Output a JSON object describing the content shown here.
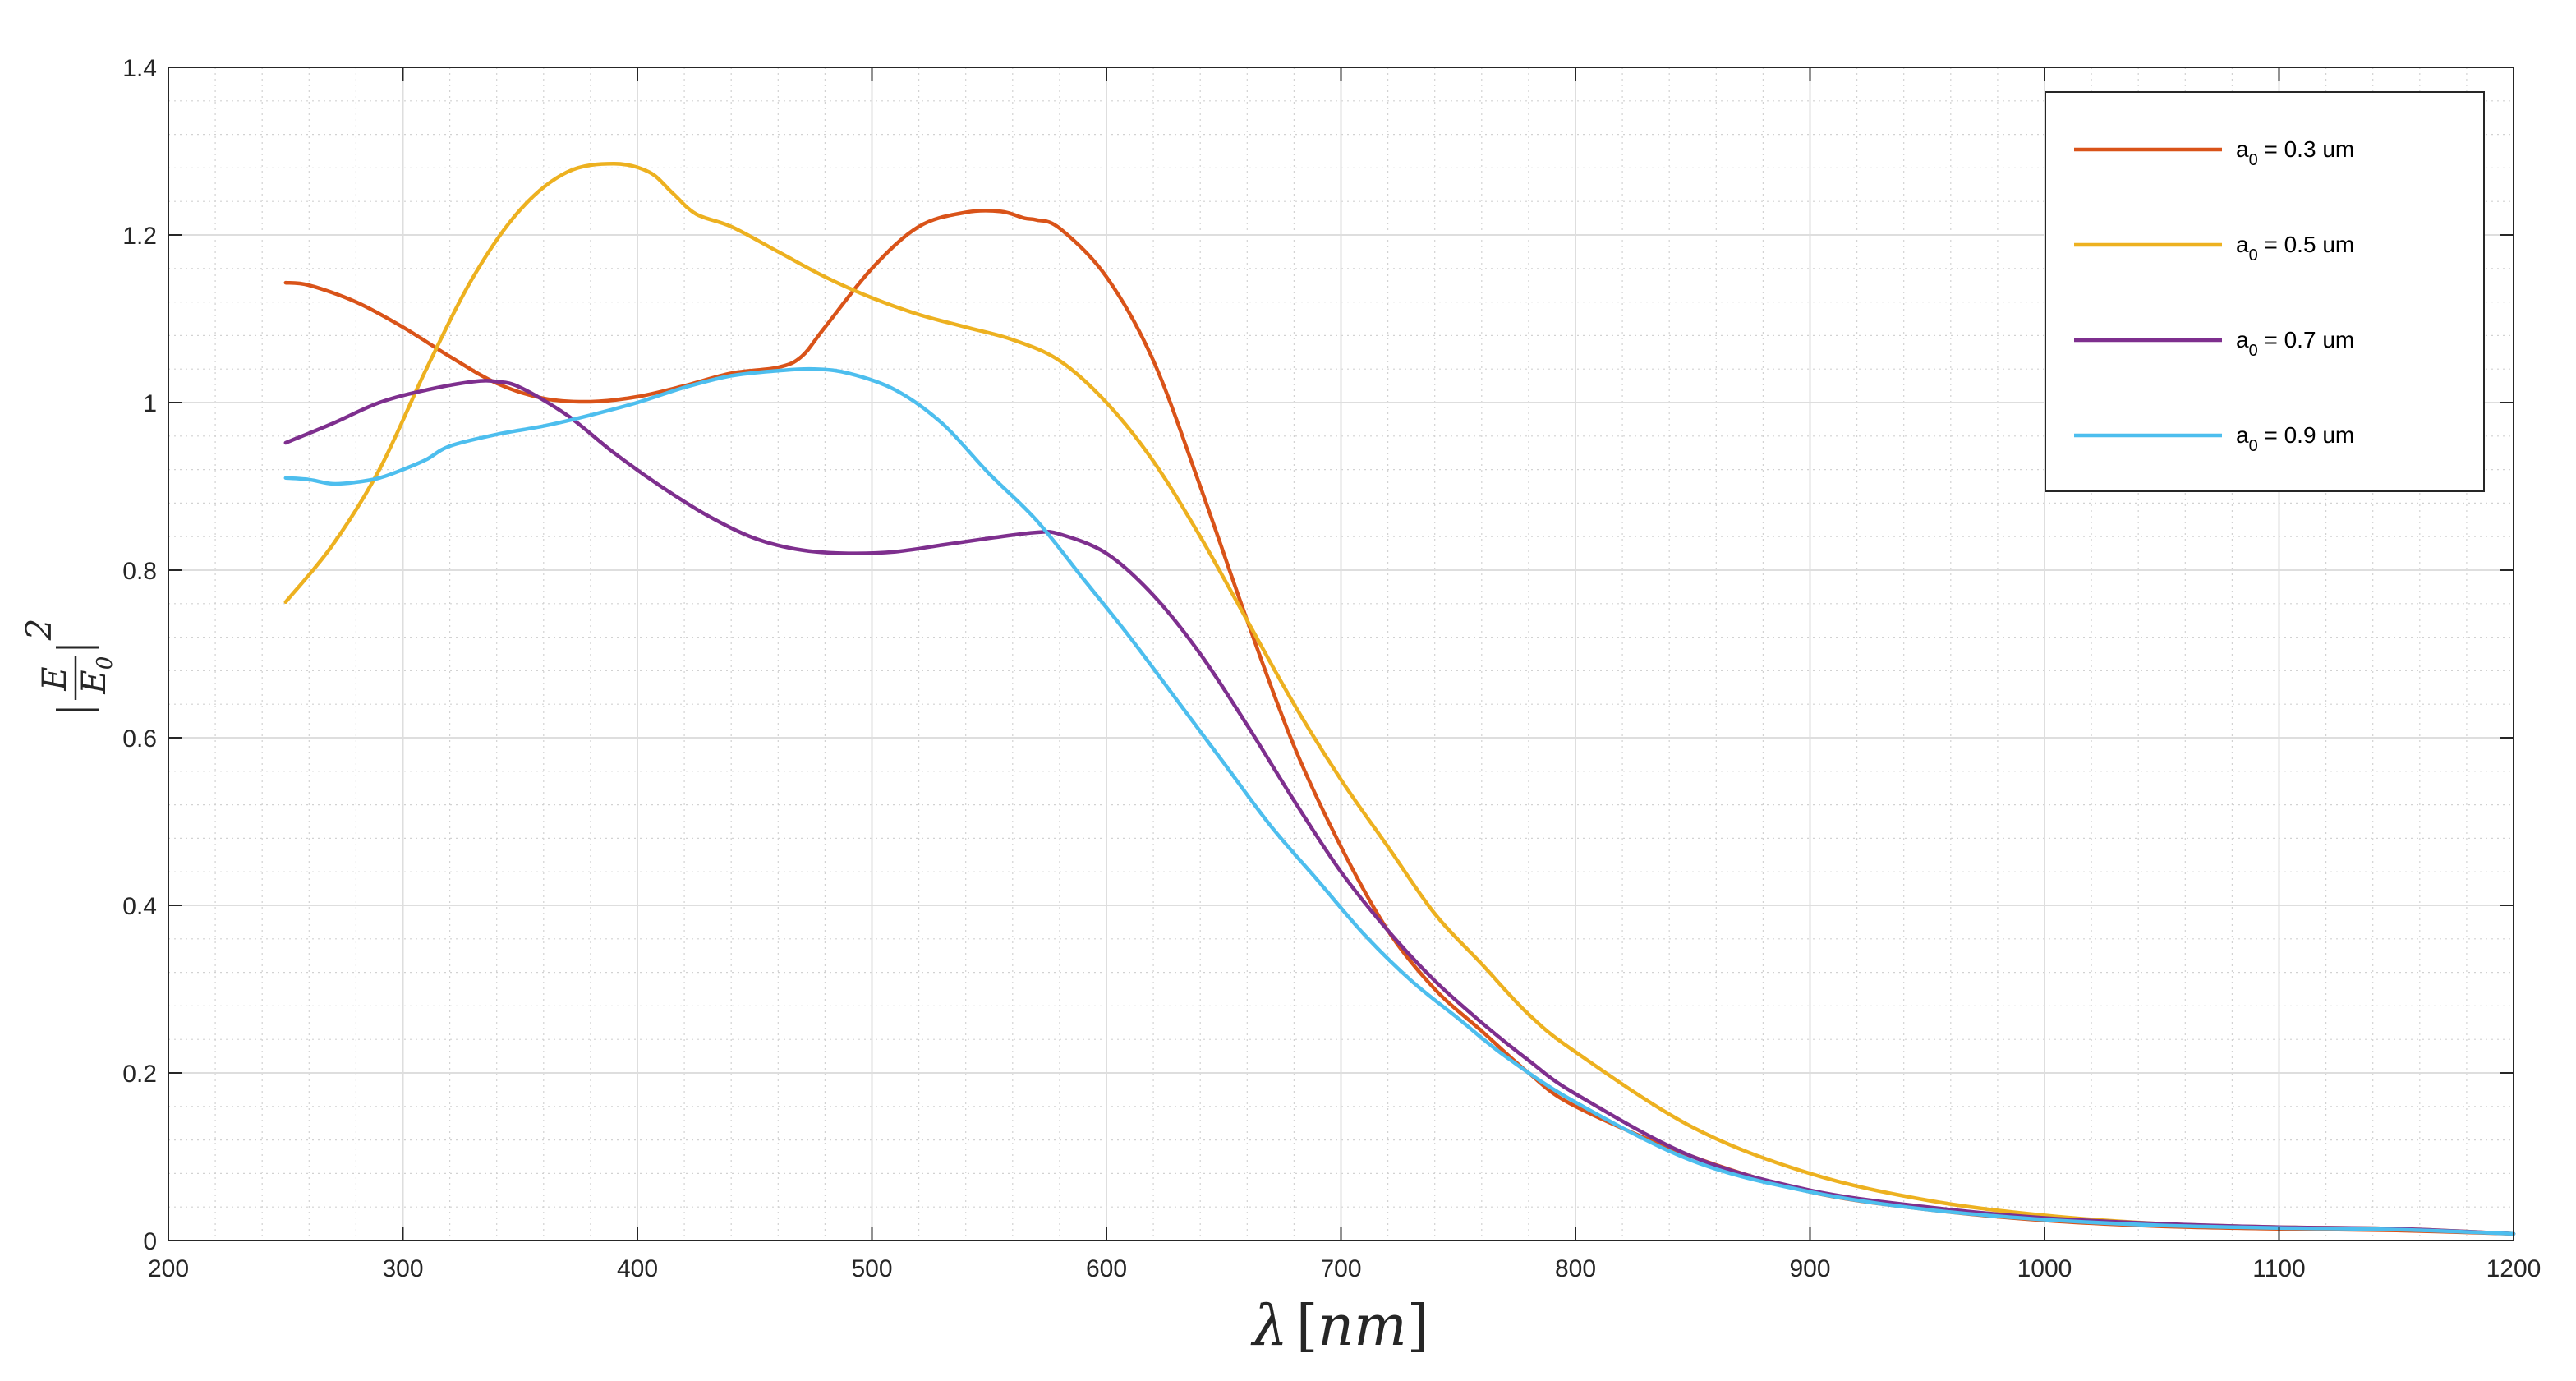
{
  "chart_data": {
    "type": "line",
    "title": "",
    "xlabel_symbol": "λ",
    "xlabel_unit": "nm",
    "ylabel_base": "E",
    "ylabel_ref": "E",
    "ylabel_ref_sub": "0",
    "ylabel_power": "2",
    "xlim": [
      200,
      1200
    ],
    "ylim": [
      0,
      1.4
    ],
    "x_ticks": [
      200,
      300,
      400,
      500,
      600,
      700,
      800,
      900,
      1000,
      1100,
      1200
    ],
    "x_tick_labels": [
      "200",
      "300",
      "400",
      "500",
      "600",
      "700",
      "800",
      "900",
      "1000",
      "1100",
      "1200"
    ],
    "y_ticks": [
      0,
      0.2,
      0.4,
      0.6,
      0.8,
      1.0,
      1.2,
      1.4
    ],
    "y_tick_labels": [
      "0",
      "0.2",
      "0.4",
      "0.6",
      "0.8",
      "1",
      "1.2",
      "1.4"
    ],
    "grid": "major and minor",
    "legend_position": "top-right",
    "series": [
      {
        "name": "a0 = 0.3 um",
        "legend_prefix": "a",
        "legend_sub": "0",
        "legend_suffix": " = 0.3 um",
        "color": "#D95319",
        "x": [
          250,
          260,
          280,
          300,
          320,
          340,
          360,
          380,
          400,
          420,
          440,
          460,
          470,
          480,
          500,
          520,
          540,
          555,
          565,
          570,
          580,
          600,
          620,
          640,
          660,
          680,
          700,
          720,
          740,
          760,
          780,
          800,
          850,
          900,
          950,
          1000,
          1050,
          1100,
          1150,
          1200
        ],
        "y": [
          1.143,
          1.14,
          1.12,
          1.09,
          1.055,
          1.023,
          1.005,
          1.001,
          1.007,
          1.02,
          1.035,
          1.042,
          1.055,
          1.09,
          1.16,
          1.21,
          1.227,
          1.228,
          1.22,
          1.218,
          1.208,
          1.15,
          1.05,
          0.9,
          0.74,
          0.59,
          0.47,
          0.37,
          0.3,
          0.25,
          0.2,
          0.16,
          0.1,
          0.058,
          0.037,
          0.024,
          0.017,
          0.014,
          0.012,
          0.008
        ]
      },
      {
        "name": "a0 = 0.5 um",
        "legend_prefix": "a",
        "legend_sub": "0",
        "legend_suffix": " = 0.5 um",
        "color": "#EDB120",
        "x": [
          250,
          270,
          290,
          310,
          330,
          350,
          370,
          390,
          405,
          415,
          425,
          440,
          460,
          480,
          500,
          520,
          540,
          560,
          580,
          600,
          620,
          640,
          660,
          680,
          700,
          720,
          740,
          760,
          780,
          800,
          850,
          900,
          950,
          1000,
          1050,
          1100,
          1150,
          1200
        ],
        "y": [
          0.762,
          0.83,
          0.92,
          1.04,
          1.15,
          1.23,
          1.275,
          1.285,
          1.275,
          1.25,
          1.225,
          1.21,
          1.18,
          1.15,
          1.125,
          1.105,
          1.09,
          1.075,
          1.05,
          1.0,
          0.93,
          0.84,
          0.74,
          0.64,
          0.55,
          0.47,
          0.39,
          0.33,
          0.27,
          0.225,
          0.135,
          0.08,
          0.048,
          0.03,
          0.02,
          0.016,
          0.014,
          0.008
        ]
      },
      {
        "name": "a0 = 0.7 um",
        "legend_prefix": "a",
        "legend_sub": "0",
        "legend_suffix": " = 0.7 um",
        "color": "#7E2F8E",
        "x": [
          250,
          270,
          290,
          310,
          330,
          340,
          350,
          370,
          390,
          410,
          430,
          450,
          470,
          490,
          510,
          530,
          550,
          570,
          580,
          600,
          620,
          640,
          660,
          680,
          700,
          720,
          740,
          760,
          780,
          800,
          850,
          900,
          950,
          1000,
          1050,
          1100,
          1150,
          1200
        ],
        "y": [
          0.952,
          0.975,
          1.0,
          1.015,
          1.025,
          1.025,
          1.018,
          0.985,
          0.94,
          0.9,
          0.865,
          0.838,
          0.824,
          0.82,
          0.822,
          0.83,
          0.838,
          0.845,
          0.843,
          0.82,
          0.77,
          0.7,
          0.615,
          0.525,
          0.44,
          0.37,
          0.31,
          0.26,
          0.215,
          0.175,
          0.1,
          0.06,
          0.04,
          0.027,
          0.02,
          0.016,
          0.014,
          0.008
        ]
      },
      {
        "name": "a0 = 0.9 um",
        "legend_prefix": "a",
        "legend_sub": "0",
        "legend_suffix": " = 0.9 um",
        "color": "#4DBEEE",
        "x": [
          250,
          260,
          270,
          280,
          290,
          300,
          310,
          320,
          340,
          360,
          380,
          400,
          420,
          440,
          460,
          475,
          490,
          510,
          530,
          550,
          570,
          590,
          610,
          630,
          650,
          670,
          690,
          710,
          730,
          750,
          770,
          800,
          850,
          900,
          950,
          1000,
          1050,
          1100,
          1150,
          1200
        ],
        "y": [
          0.91,
          0.908,
          0.903,
          0.905,
          0.91,
          0.92,
          0.932,
          0.948,
          0.962,
          0.972,
          0.985,
          1.0,
          1.018,
          1.032,
          1.038,
          1.04,
          1.035,
          1.015,
          0.975,
          0.915,
          0.86,
          0.79,
          0.72,
          0.645,
          0.57,
          0.495,
          0.43,
          0.365,
          0.31,
          0.265,
          0.22,
          0.165,
          0.095,
          0.058,
          0.037,
          0.025,
          0.018,
          0.015,
          0.013,
          0.008
        ]
      }
    ]
  }
}
